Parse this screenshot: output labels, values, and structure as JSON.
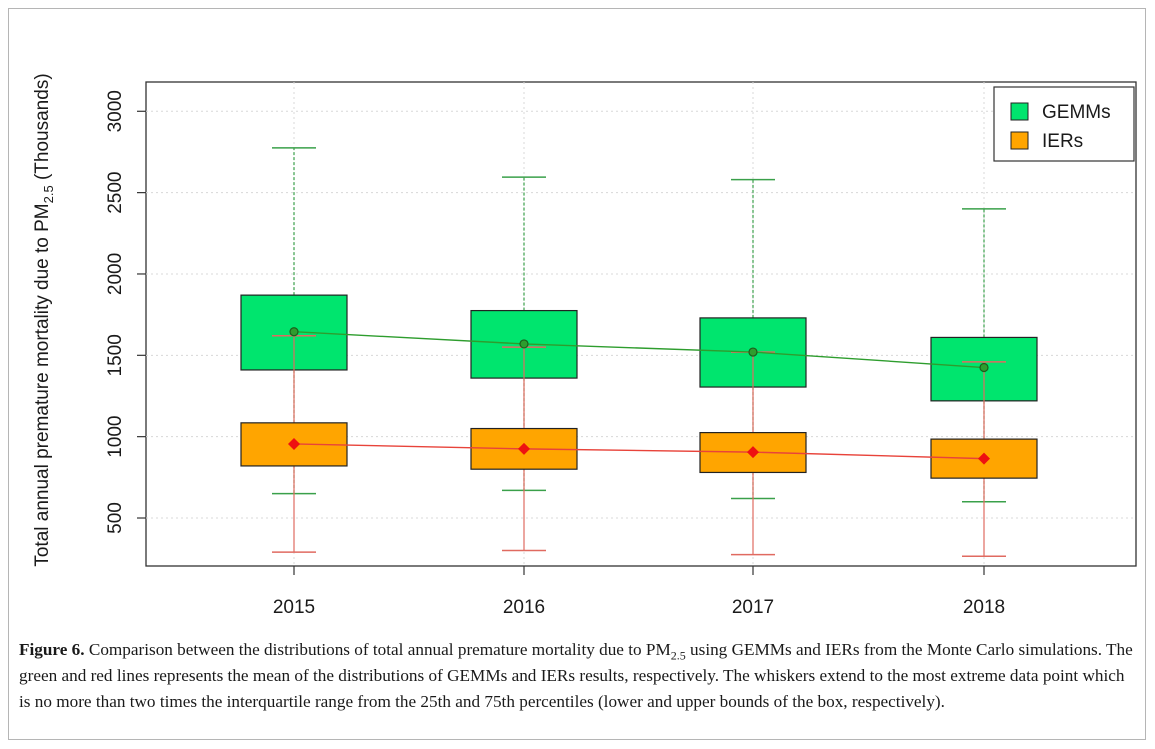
{
  "chart_data": {
    "type": "box",
    "categories": [
      "2015",
      "2016",
      "2017",
      "2018"
    ],
    "ylabel_main": "Total annual premature mortality due to PM",
    "ylabel_sub": "2.5",
    "ylabel_tail": " (Thousands)",
    "yticks": [
      500,
      1000,
      1500,
      2000,
      2500,
      3000
    ],
    "ylim": [
      205,
      3180
    ],
    "grid": true,
    "legend_position": "top-right",
    "series": [
      {
        "name": "GEMMs",
        "color": "#00e56e",
        "mean_line_color": "#2e9d2e",
        "whisker_color": "#3aa04a",
        "whisker_low": [
          650,
          670,
          620,
          600
        ],
        "q1": [
          1410,
          1360,
          1305,
          1220
        ],
        "q3": [
          1870,
          1775,
          1730,
          1610
        ],
        "whisker_high": [
          2775,
          2595,
          2580,
          2400
        ],
        "mean": [
          1645,
          1570,
          1520,
          1425
        ]
      },
      {
        "name": "IERs",
        "color": "#ffa500",
        "mean_line_color": "#e8433a",
        "whisker_color": "#e06a60",
        "whisker_low": [
          290,
          300,
          275,
          265
        ],
        "q1": [
          820,
          800,
          780,
          745
        ],
        "q3": [
          1085,
          1050,
          1025,
          985
        ],
        "whisker_high": [
          1620,
          1550,
          1520,
          1460
        ],
        "mean": [
          955,
          925,
          905,
          865
        ]
      }
    ]
  },
  "caption": {
    "label": "Figure 6.",
    "text_a": " Comparison between the distributions of total annual premature mortality due to PM",
    "sub": "2.5",
    "text_b": " using GEMMs and IERs from the Monte Carlo simulations. The green and red lines represents the mean of the distributions of GEMMs and IERs results, respectively. The whiskers extend to the most extreme data point which is no more than two times the interquartile range from the 25th and 75th percentiles (lower and upper bounds of the box, respectively)."
  }
}
